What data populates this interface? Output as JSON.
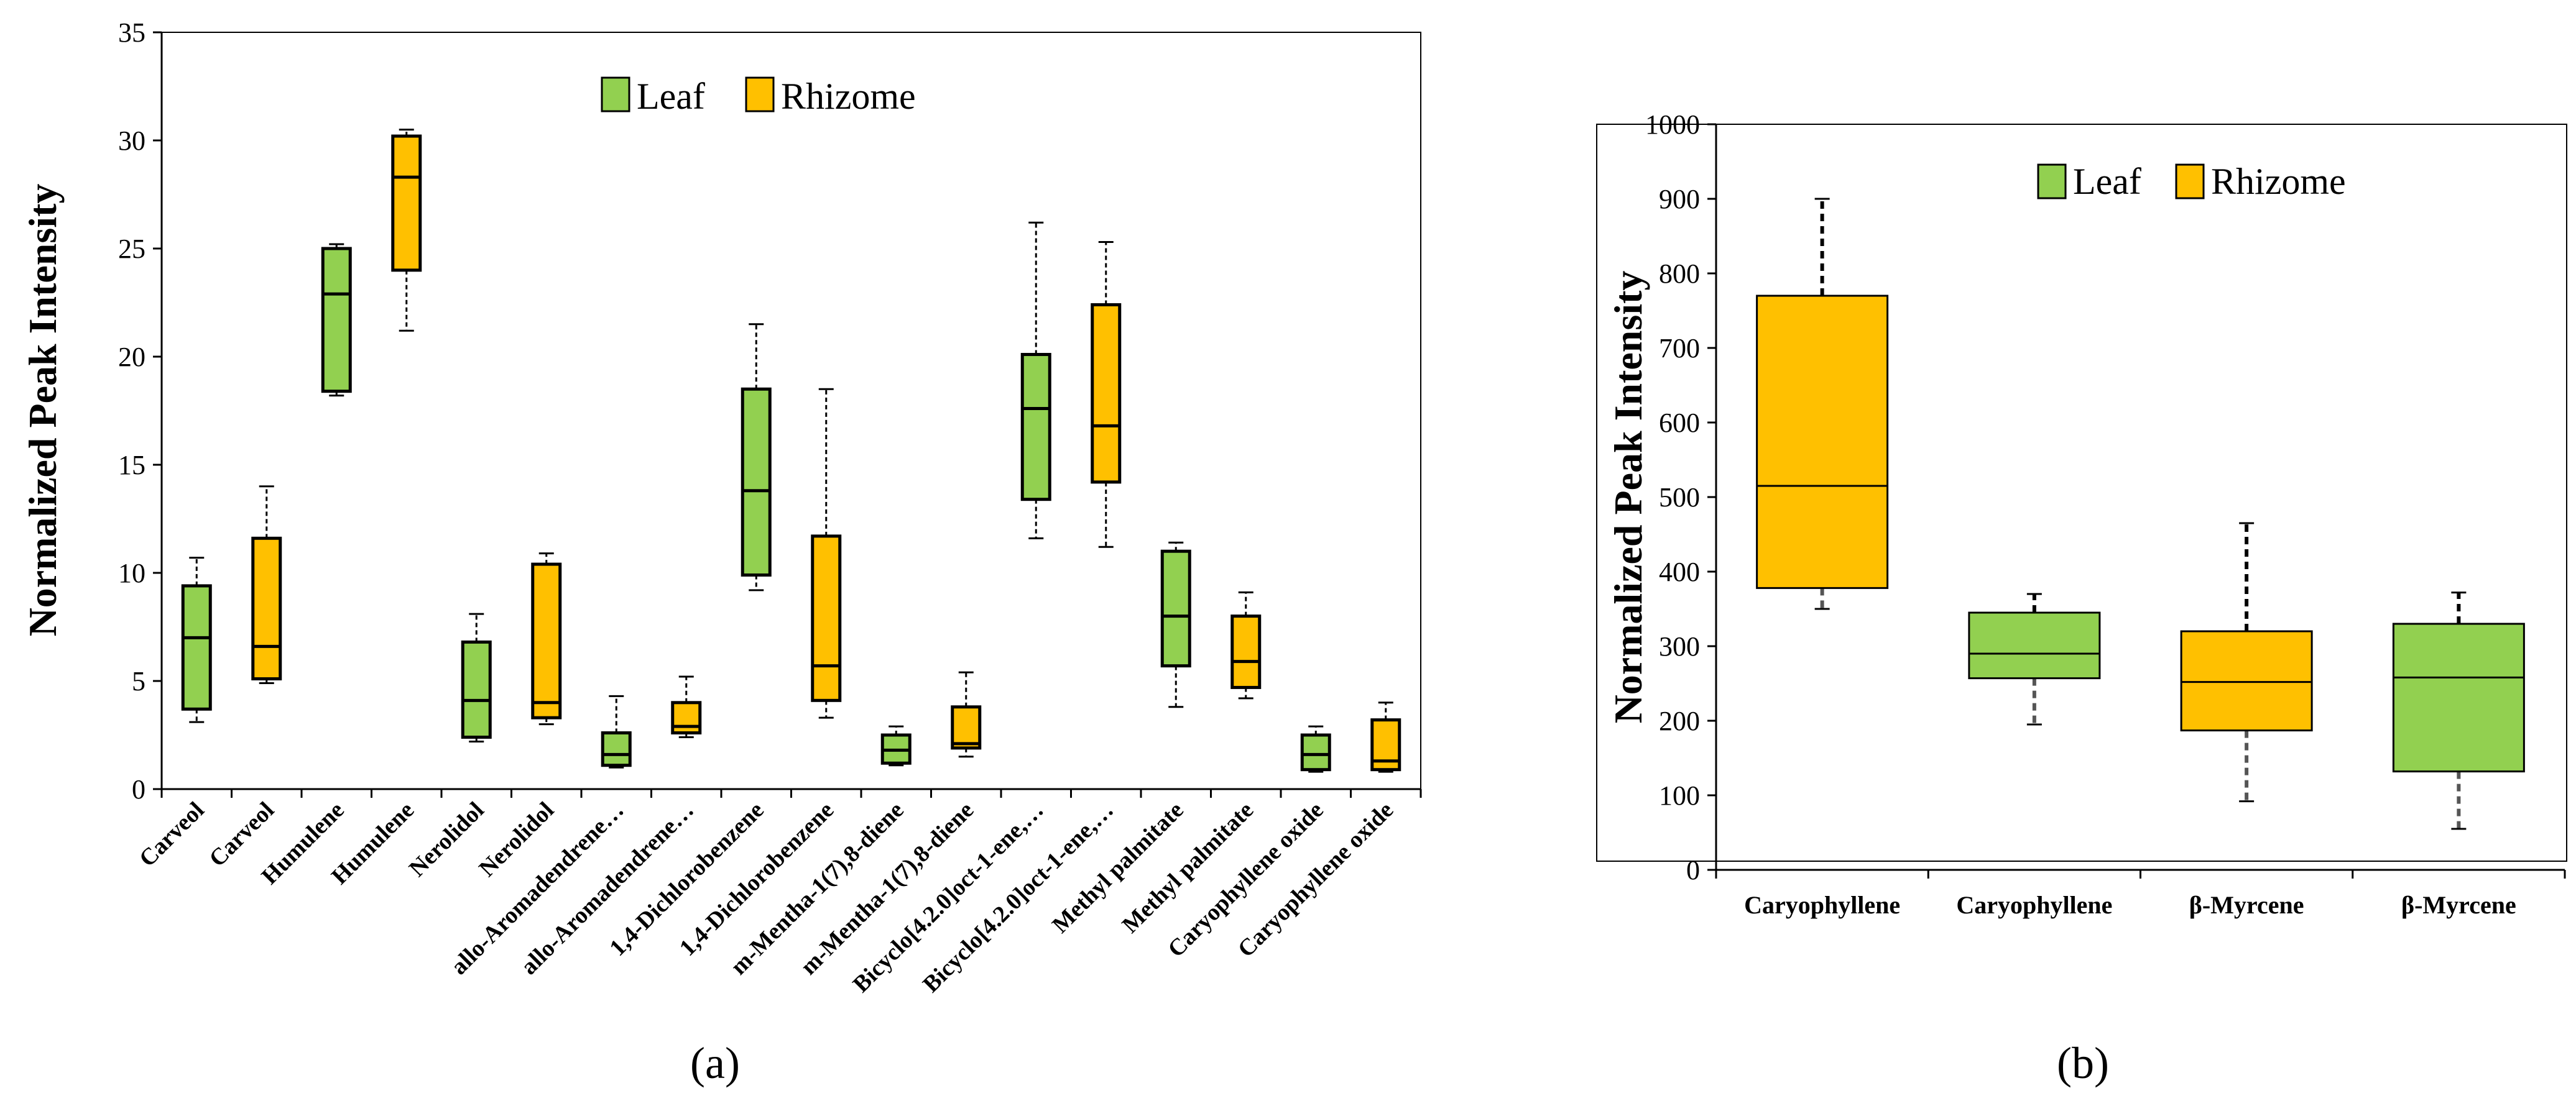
{
  "colors": {
    "leaf": "#92D050",
    "rhizome": "#FFC000",
    "axis": "#000000"
  },
  "chart_data": [
    {
      "type": "box",
      "panel_label": "(a)",
      "ylabel": "Normalized Peak Intensity",
      "ylim": [
        0,
        35
      ],
      "yticks": [
        0,
        5,
        10,
        15,
        20,
        25,
        30,
        35
      ],
      "legend": [
        {
          "name": "Leaf",
          "color": "#92D050"
        },
        {
          "name": "Rhizome",
          "color": "#FFC000"
        }
      ],
      "legend_position": "top-center",
      "boxes": [
        {
          "category": "Carveol",
          "series": "Leaf",
          "min": 3.1,
          "q1": 3.7,
          "median": 7.0,
          "q3": 9.4,
          "max": 10.7
        },
        {
          "category": "Carveol",
          "series": "Rhizome",
          "min": 4.9,
          "q1": 5.1,
          "median": 6.6,
          "q3": 11.6,
          "max": 14.0
        },
        {
          "category": "Humulene",
          "series": "Leaf",
          "min": 18.2,
          "q1": 18.4,
          "median": 22.9,
          "q3": 25.0,
          "max": 25.2
        },
        {
          "category": "Humulene",
          "series": "Rhizome",
          "min": 21.2,
          "q1": 24.0,
          "median": 28.3,
          "q3": 30.2,
          "max": 30.5
        },
        {
          "category": "Nerolidol",
          "series": "Leaf",
          "min": 2.2,
          "q1": 2.4,
          "median": 4.1,
          "q3": 6.8,
          "max": 8.1
        },
        {
          "category": "Nerolidol",
          "series": "Rhizome",
          "min": 3.0,
          "q1": 3.3,
          "median": 4.0,
          "q3": 10.4,
          "max": 10.9
        },
        {
          "category": "allo-Aromadendrene…",
          "series": "Leaf",
          "min": 1.0,
          "q1": 1.1,
          "median": 1.6,
          "q3": 2.6,
          "max": 4.3
        },
        {
          "category": "allo-Aromadendrene…",
          "series": "Rhizome",
          "min": 2.4,
          "q1": 2.6,
          "median": 2.9,
          "q3": 4.0,
          "max": 5.2
        },
        {
          "category": "1,4-Dichlorobenzene",
          "series": "Leaf",
          "min": 9.2,
          "q1": 9.9,
          "median": 13.8,
          "q3": 18.5,
          "max": 21.5
        },
        {
          "category": "1,4-Dichlorobenzene",
          "series": "Rhizome",
          "min": 3.3,
          "q1": 4.1,
          "median": 5.7,
          "q3": 11.7,
          "max": 18.5
        },
        {
          "category": "m-Mentha-1(7),8-diene",
          "series": "Leaf",
          "min": 1.1,
          "q1": 1.2,
          "median": 1.8,
          "q3": 2.5,
          "max": 2.9
        },
        {
          "category": "m-Mentha-1(7),8-diene",
          "series": "Rhizome",
          "min": 1.5,
          "q1": 1.9,
          "median": 2.1,
          "q3": 3.8,
          "max": 5.4
        },
        {
          "category": "Bicyclo[4.2.0]oct-1-ene,…",
          "series": "Leaf",
          "min": 11.6,
          "q1": 13.4,
          "median": 17.6,
          "q3": 20.1,
          "max": 26.2
        },
        {
          "category": "Bicyclo[4.2.0]oct-1-ene,…",
          "series": "Rhizome",
          "min": 11.2,
          "q1": 14.2,
          "median": 16.8,
          "q3": 22.4,
          "max": 25.3
        },
        {
          "category": "Methyl palmitate",
          "series": "Leaf",
          "min": 3.8,
          "q1": 5.7,
          "median": 8.0,
          "q3": 11.0,
          "max": 11.4
        },
        {
          "category": "Methyl palmitate",
          "series": "Rhizome",
          "min": 4.2,
          "q1": 4.7,
          "median": 5.9,
          "q3": 8.0,
          "max": 9.1
        },
        {
          "category": "Caryophyllene oxide",
          "series": "Leaf",
          "min": 0.8,
          "q1": 0.9,
          "median": 1.6,
          "q3": 2.5,
          "max": 2.9
        },
        {
          "category": "Caryophyllene oxide",
          "series": "Rhizome",
          "min": 0.8,
          "q1": 0.9,
          "median": 1.3,
          "q3": 3.2,
          "max": 4.0
        }
      ]
    },
    {
      "type": "box",
      "panel_label": "(b)",
      "ylabel": "Normalized Peak Intensity",
      "ylim": [
        0,
        1000
      ],
      "yticks": [
        0,
        100,
        200,
        300,
        400,
        500,
        600,
        700,
        800,
        900,
        1000
      ],
      "legend": [
        {
          "name": "Leaf",
          "color": "#92D050"
        },
        {
          "name": "Rhizome",
          "color": "#FFC000"
        }
      ],
      "legend_position": "top-center",
      "boxes": [
        {
          "category": "Caryophyllene",
          "series": "Rhizome",
          "min": 350,
          "q1": 378,
          "median": 515,
          "q3": 770,
          "max": 900
        },
        {
          "category": "Caryophyllene",
          "series": "Leaf",
          "min": 195,
          "q1": 257,
          "median": 290,
          "q3": 345,
          "max": 370
        },
        {
          "category": "β-Myrcene",
          "series": "Rhizome",
          "min": 92,
          "q1": 187,
          "median": 252,
          "q3": 320,
          "max": 465
        },
        {
          "category": "β-Myrcene",
          "series": "Leaf",
          "min": 55,
          "q1": 132,
          "median": 258,
          "q3": 330,
          "max": 372
        }
      ]
    }
  ]
}
